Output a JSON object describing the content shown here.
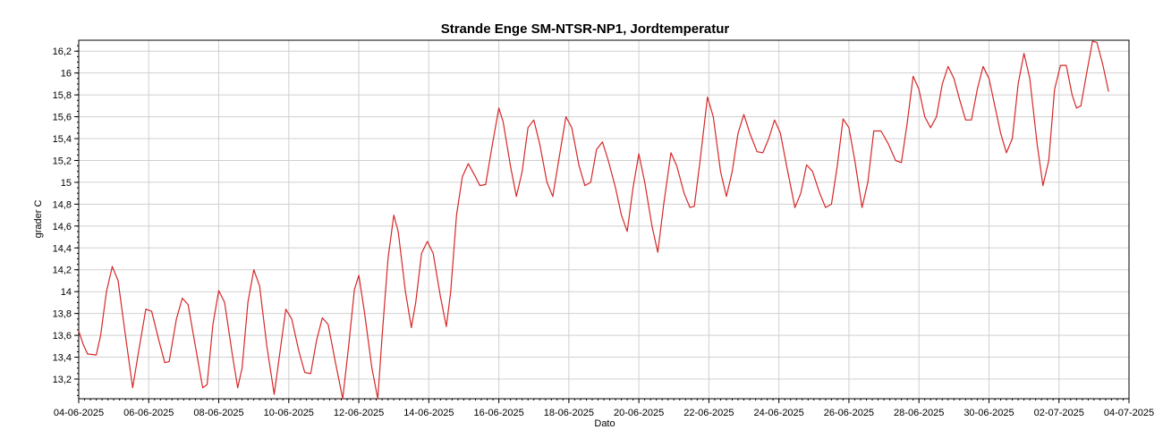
{
  "chart_data": {
    "type": "line",
    "title": "Strande Enge SM-NTSR-NP1, Jordtemperatur",
    "xlabel": "Dato",
    "ylabel": "grader C",
    "grid": true,
    "legend": "none",
    "xlim": [
      "2025-06-04",
      "2025-07-04"
    ],
    "ylim": [
      13.02,
      16.3
    ],
    "x_ticks": [
      "04-06-2025",
      "06-06-2025",
      "08-06-2025",
      "10-06-2025",
      "12-06-2025",
      "14-06-2025",
      "16-06-2025",
      "18-06-2025",
      "20-06-2025",
      "22-06-2025",
      "24-06-2025",
      "26-06-2025",
      "28-06-2025",
      "30-06-2025",
      "02-07-2025",
      "04-07-2025"
    ],
    "y_ticks": [
      "13,2",
      "13,4",
      "13,6",
      "13,8",
      "14",
      "14,2",
      "14,4",
      "14,6",
      "14,8",
      "15",
      "15,2",
      "15,4",
      "15,6",
      "15,8",
      "16",
      "16,2"
    ],
    "series": [
      {
        "color": "#d62728",
        "points": [
          [
            "2025-06-04T00:00",
            13.64
          ],
          [
            "2025-06-04T03:00",
            13.52
          ],
          [
            "2025-06-04T06:00",
            13.43
          ],
          [
            "2025-06-04T12:00",
            13.42
          ],
          [
            "2025-06-04T15:00",
            13.6
          ],
          [
            "2025-06-04T19:00",
            14.0
          ],
          [
            "2025-06-04T23:00",
            14.23
          ],
          [
            "2025-06-05T03:00",
            14.1
          ],
          [
            "2025-06-05T08:00",
            13.6
          ],
          [
            "2025-06-05T13:00",
            13.12
          ],
          [
            "2025-06-05T17:00",
            13.45
          ],
          [
            "2025-06-05T22:00",
            13.84
          ],
          [
            "2025-06-06T02:00",
            13.82
          ],
          [
            "2025-06-06T07:00",
            13.55
          ],
          [
            "2025-06-06T11:00",
            13.35
          ],
          [
            "2025-06-06T14:00",
            13.36
          ],
          [
            "2025-06-06T19:00",
            13.75
          ],
          [
            "2025-06-06T23:00",
            13.94
          ],
          [
            "2025-06-07T03:00",
            13.88
          ],
          [
            "2025-06-07T08:00",
            13.5
          ],
          [
            "2025-06-07T13:00",
            13.12
          ],
          [
            "2025-06-07T16:00",
            13.15
          ],
          [
            "2025-06-07T20:00",
            13.7
          ],
          [
            "2025-06-08T00:00",
            14.01
          ],
          [
            "2025-06-08T04:00",
            13.9
          ],
          [
            "2025-06-08T09:00",
            13.45
          ],
          [
            "2025-06-08T13:00",
            13.12
          ],
          [
            "2025-06-08T16:00",
            13.3
          ],
          [
            "2025-06-08T20:00",
            13.9
          ],
          [
            "2025-06-09T00:00",
            14.2
          ],
          [
            "2025-06-09T04:00",
            14.05
          ],
          [
            "2025-06-09T09:00",
            13.5
          ],
          [
            "2025-06-09T14:00",
            13.06
          ],
          [
            "2025-06-09T18:00",
            13.45
          ],
          [
            "2025-06-09T22:00",
            13.84
          ],
          [
            "2025-06-10T02:00",
            13.75
          ],
          [
            "2025-06-10T07:00",
            13.45
          ],
          [
            "2025-06-10T11:00",
            13.26
          ],
          [
            "2025-06-10T15:00",
            13.25
          ],
          [
            "2025-06-10T19:00",
            13.55
          ],
          [
            "2025-06-10T23:00",
            13.76
          ],
          [
            "2025-06-11T03:00",
            13.7
          ],
          [
            "2025-06-11T08:00",
            13.35
          ],
          [
            "2025-06-11T13:00",
            13.02
          ],
          [
            "2025-06-11T17:00",
            13.5
          ],
          [
            "2025-06-11T21:00",
            14.02
          ],
          [
            "2025-06-12T00:00",
            14.15
          ],
          [
            "2025-06-12T04:00",
            13.8
          ],
          [
            "2025-06-12T09:00",
            13.3
          ],
          [
            "2025-06-12T13:00",
            13.02
          ],
          [
            "2025-06-12T16:00",
            13.6
          ],
          [
            "2025-06-12T20:00",
            14.3
          ],
          [
            "2025-06-13T00:00",
            14.7
          ],
          [
            "2025-06-13T03:00",
            14.55
          ],
          [
            "2025-06-13T08:00",
            14.0
          ],
          [
            "2025-06-13T12:00",
            13.67
          ],
          [
            "2025-06-13T15:00",
            13.9
          ],
          [
            "2025-06-13T19:00",
            14.35
          ],
          [
            "2025-06-13T23:00",
            14.46
          ],
          [
            "2025-06-14T03:00",
            14.35
          ],
          [
            "2025-06-14T08:00",
            13.95
          ],
          [
            "2025-06-14T12:00",
            13.68
          ],
          [
            "2025-06-14T15:00",
            14.0
          ],
          [
            "2025-06-14T19:00",
            14.7
          ],
          [
            "2025-06-14T23:00",
            15.05
          ],
          [
            "2025-06-15T03:00",
            15.17
          ],
          [
            "2025-06-15T08:00",
            15.05
          ],
          [
            "2025-06-15T11:00",
            14.97
          ],
          [
            "2025-06-15T15:00",
            14.98
          ],
          [
            "2025-06-15T19:00",
            15.3
          ],
          [
            "2025-06-16T00:00",
            15.68
          ],
          [
            "2025-06-16T03:00",
            15.55
          ],
          [
            "2025-06-16T08:00",
            15.15
          ],
          [
            "2025-06-16T12:00",
            14.87
          ],
          [
            "2025-06-16T16:00",
            15.1
          ],
          [
            "2025-06-16T20:00",
            15.5
          ],
          [
            "2025-06-17T00:00",
            15.57
          ],
          [
            "2025-06-17T04:00",
            15.35
          ],
          [
            "2025-06-17T09:00",
            15.0
          ],
          [
            "2025-06-17T13:00",
            14.87
          ],
          [
            "2025-06-17T17:00",
            15.2
          ],
          [
            "2025-06-17T22:00",
            15.6
          ],
          [
            "2025-06-18T02:00",
            15.5
          ],
          [
            "2025-06-18T07:00",
            15.15
          ],
          [
            "2025-06-18T11:00",
            14.97
          ],
          [
            "2025-06-18T15:00",
            15.0
          ],
          [
            "2025-06-18T19:00",
            15.3
          ],
          [
            "2025-06-18T23:00",
            15.37
          ],
          [
            "2025-06-19T03:00",
            15.2
          ],
          [
            "2025-06-19T08:00",
            14.95
          ],
          [
            "2025-06-19T12:00",
            14.7
          ],
          [
            "2025-06-19T16:00",
            14.55
          ],
          [
            "2025-06-19T20:00",
            14.95
          ],
          [
            "2025-06-20T00:00",
            15.26
          ],
          [
            "2025-06-20T04:00",
            15.0
          ],
          [
            "2025-06-20T09:00",
            14.6
          ],
          [
            "2025-06-20T13:00",
            14.36
          ],
          [
            "2025-06-20T17:00",
            14.8
          ],
          [
            "2025-06-20T22:00",
            15.27
          ],
          [
            "2025-06-21T02:00",
            15.15
          ],
          [
            "2025-06-21T07:00",
            14.9
          ],
          [
            "2025-06-21T11:00",
            14.77
          ],
          [
            "2025-06-21T14:00",
            14.78
          ],
          [
            "2025-06-21T18:00",
            15.2
          ],
          [
            "2025-06-21T23:00",
            15.78
          ],
          [
            "2025-06-22T03:00",
            15.6
          ],
          [
            "2025-06-22T08:00",
            15.1
          ],
          [
            "2025-06-22T12:00",
            14.87
          ],
          [
            "2025-06-22T16:00",
            15.1
          ],
          [
            "2025-06-22T20:00",
            15.45
          ],
          [
            "2025-06-23T00:00",
            15.62
          ],
          [
            "2025-06-23T04:00",
            15.45
          ],
          [
            "2025-06-23T09:00",
            15.28
          ],
          [
            "2025-06-23T13:00",
            15.27
          ],
          [
            "2025-06-23T17:00",
            15.4
          ],
          [
            "2025-06-23T21:00",
            15.57
          ],
          [
            "2025-06-24T01:00",
            15.45
          ],
          [
            "2025-06-24T06:00",
            15.1
          ],
          [
            "2025-06-24T11:00",
            14.77
          ],
          [
            "2025-06-24T15:00",
            14.9
          ],
          [
            "2025-06-24T19:00",
            15.16
          ],
          [
            "2025-06-24T23:00",
            15.1
          ],
          [
            "2025-06-25T04:00",
            14.9
          ],
          [
            "2025-06-25T08:00",
            14.77
          ],
          [
            "2025-06-25T12:00",
            14.8
          ],
          [
            "2025-06-25T16:00",
            15.15
          ],
          [
            "2025-06-25T20:00",
            15.58
          ],
          [
            "2025-06-26T00:00",
            15.5
          ],
          [
            "2025-06-26T04:00",
            15.2
          ],
          [
            "2025-06-26T09:00",
            14.77
          ],
          [
            "2025-06-26T13:00",
            15.0
          ],
          [
            "2025-06-26T17:00",
            15.47
          ],
          [
            "2025-06-26T22:00",
            15.47
          ],
          [
            "2025-06-27T03:00",
            15.35
          ],
          [
            "2025-06-27T08:00",
            15.2
          ],
          [
            "2025-06-27T12:00",
            15.18
          ],
          [
            "2025-06-27T16:00",
            15.55
          ],
          [
            "2025-06-27T20:00",
            15.97
          ],
          [
            "2025-06-28T00:00",
            15.85
          ],
          [
            "2025-06-28T04:00",
            15.6
          ],
          [
            "2025-06-28T08:00",
            15.5
          ],
          [
            "2025-06-28T12:00",
            15.6
          ],
          [
            "2025-06-28T16:00",
            15.9
          ],
          [
            "2025-06-28T20:00",
            16.06
          ],
          [
            "2025-06-29T00:00",
            15.95
          ],
          [
            "2025-06-29T04:00",
            15.75
          ],
          [
            "2025-06-29T08:00",
            15.57
          ],
          [
            "2025-06-29T12:00",
            15.57
          ],
          [
            "2025-06-29T16:00",
            15.85
          ],
          [
            "2025-06-29T20:00",
            16.06
          ],
          [
            "2025-06-30T00:00",
            15.95
          ],
          [
            "2025-06-30T04:00",
            15.7
          ],
          [
            "2025-06-30T08:00",
            15.45
          ],
          [
            "2025-06-30T12:00",
            15.27
          ],
          [
            "2025-06-30T16:00",
            15.4
          ],
          [
            "2025-06-30T20:00",
            15.9
          ],
          [
            "2025-07-01T00:00",
            16.18
          ],
          [
            "2025-07-01T04:00",
            15.95
          ],
          [
            "2025-07-01T09:00",
            15.35
          ],
          [
            "2025-07-01T13:00",
            14.97
          ],
          [
            "2025-07-01T17:00",
            15.2
          ],
          [
            "2025-07-01T21:00",
            15.85
          ],
          [
            "2025-07-02T01:00",
            16.07
          ],
          [
            "2025-07-02T05:00",
            16.07
          ],
          [
            "2025-07-02T09:00",
            15.8
          ],
          [
            "2025-07-02T12:00",
            15.68
          ],
          [
            "2025-07-02T15:00",
            15.7
          ],
          [
            "2025-07-02T19:00",
            16.0
          ],
          [
            "2025-07-02T23:00",
            16.29
          ],
          [
            "2025-07-03T02:00",
            16.28
          ],
          [
            "2025-07-03T06:00",
            16.08
          ],
          [
            "2025-07-03T10:00",
            15.83
          ]
        ]
      }
    ]
  }
}
